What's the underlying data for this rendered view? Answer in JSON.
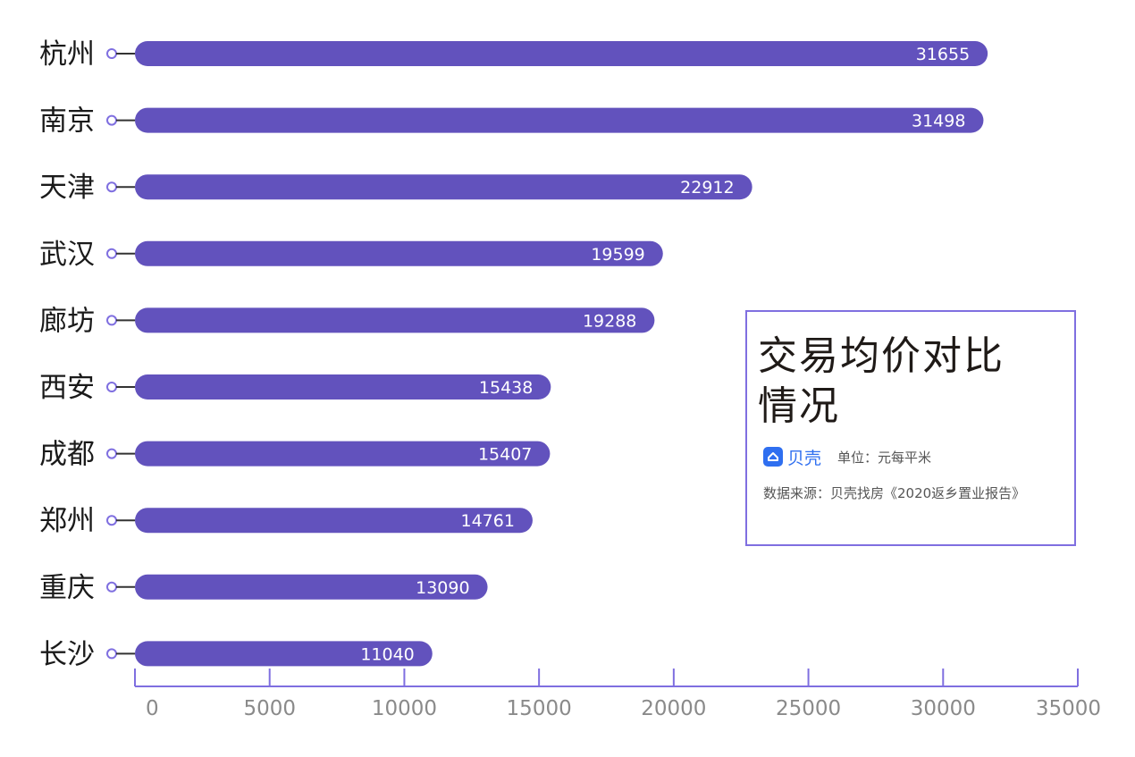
{
  "chart_data": {
    "type": "bar",
    "orientation": "horizontal",
    "categories": [
      "杭州",
      "南京",
      "天津",
      "武汉",
      "廊坊",
      "西安",
      "成都",
      "郑州",
      "重庆",
      "长沙"
    ],
    "values": [
      31655,
      31498,
      22912,
      19599,
      19288,
      15438,
      15407,
      14761,
      13090,
      11040
    ],
    "value_labels": [
      "31655",
      "31498",
      "22912",
      "19599",
      "19288",
      "15438",
      "15407",
      "14761",
      "13090",
      "11040"
    ],
    "xlim": [
      0,
      35000
    ],
    "xticks": [
      "0",
      "5000",
      "10000",
      "15000",
      "20000",
      "25000",
      "30000",
      "35000"
    ],
    "bar_color": "#6252bd",
    "axis_color": "#7f6fe0",
    "grid": false
  },
  "info": {
    "title_line1": "交易均价对比",
    "title_line2": "情况",
    "brand": "贝壳",
    "unit": "单位：元每平米",
    "source": "数据来源：贝壳找房《2020返乡置业报告》"
  }
}
